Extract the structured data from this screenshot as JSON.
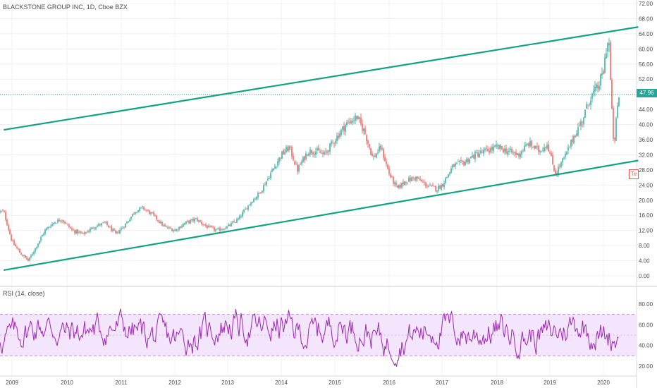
{
  "header": {
    "symbol_title": "BLACKSTONE GROUP INC, 1D, Cboe BZX"
  },
  "rsi_panel": {
    "label": "RSI (14, close)"
  },
  "price_tag": {
    "value": "47.96"
  },
  "partial_tag": {
    "text": "Te"
  },
  "colors": {
    "up_candle": "#26a69a",
    "down_candle": "#ef5350",
    "trendline": "#10a37f",
    "rsi_line": "#9c27b0",
    "rsi_band_fill": "#f3e5fc",
    "price_line": "#26a69a",
    "axis_text": "#4a4a4a"
  },
  "chart_data": [
    {
      "type": "candlestick",
      "title": "BLACKSTONE GROUP INC, 1D, Cboe BZX",
      "x_tick_labels": [
        "2009",
        "2010",
        "2011",
        "2012",
        "2013",
        "2014",
        "2015",
        "2016",
        "2017",
        "2018",
        "2019",
        "2020"
      ],
      "y_tick_labels": [
        "0.00",
        "4.00",
        "8.00",
        "12.00",
        "16.00",
        "20.00",
        "24.00",
        "28.00",
        "32.00",
        "36.00",
        "40.00",
        "44.00",
        "48.00",
        "52.00",
        "56.00",
        "60.00",
        "64.00",
        "68.00",
        "72.00"
      ],
      "ylim": [
        -2,
        73
      ],
      "last_price": 47.96,
      "series": [
        {
          "kind": "close",
          "x": [
            2008.85,
            2009.0,
            2009.15,
            2009.3,
            2009.45,
            2009.6,
            2009.75,
            2009.9,
            2010.1,
            2010.3,
            2010.5,
            2010.7,
            2010.9,
            2011.1,
            2011.25,
            2011.4,
            2011.6,
            2011.8,
            2012.0,
            2012.2,
            2012.4,
            2012.6,
            2012.8,
            2013.0,
            2013.2,
            2013.4,
            2013.6,
            2013.8,
            2014.0,
            2014.15,
            2014.3,
            2014.5,
            2014.65,
            2014.8,
            2015.0,
            2015.2,
            2015.4,
            2015.55,
            2015.7,
            2015.85,
            2016.0,
            2016.15,
            2016.3,
            2016.5,
            2016.7,
            2016.9,
            2017.0,
            2017.2,
            2017.4,
            2017.6,
            2017.8,
            2018.0,
            2018.2,
            2018.4,
            2018.6,
            2018.8,
            2018.95,
            2019.1,
            2019.3,
            2019.45,
            2019.6,
            2019.75,
            2019.9,
            2020.0,
            2020.05,
            2020.1,
            2020.15,
            2020.2,
            2020.25,
            2020.3
          ],
          "values": [
            17,
            9,
            6,
            4,
            8,
            12,
            14,
            15,
            12,
            11,
            13,
            14,
            11,
            14,
            17,
            18,
            16,
            13,
            12,
            14,
            15,
            13,
            12,
            13,
            15,
            19,
            22,
            27,
            32,
            34,
            28,
            33,
            33,
            32,
            36,
            40,
            42,
            38,
            31,
            34,
            27,
            23,
            25,
            26,
            24,
            23,
            24,
            29,
            30,
            32,
            33,
            34,
            33,
            32,
            35,
            33,
            35,
            27,
            32,
            37,
            41,
            47,
            50,
            54,
            60,
            63,
            45,
            33,
            44,
            47.96
          ]
        }
      ],
      "trendlines": [
        {
          "name": "upper",
          "points": [
            [
              2008.85,
              38.6
            ],
            [
              2020.65,
              65.8
            ]
          ]
        },
        {
          "name": "lower",
          "points": [
            [
              2008.85,
              1.5
            ],
            [
              2020.65,
              30.5
            ]
          ]
        }
      ]
    },
    {
      "type": "line",
      "title": "RSI (14, close)",
      "y_tick_labels": [
        "20.00",
        "40.00",
        "60.00",
        "80.00"
      ],
      "ylim": [
        15,
        92
      ],
      "band": [
        30,
        70
      ],
      "series": [
        {
          "name": "RSI (14, close)",
          "x": [
            2009.0,
            2009.5,
            2010.0,
            2010.5,
            2011.0,
            2011.5,
            2012.0,
            2012.5,
            2013.0,
            2013.5,
            2014.0,
            2014.5,
            2015.0,
            2015.5,
            2016.0,
            2016.5,
            2017.0,
            2017.5,
            2018.0,
            2018.5,
            2019.0,
            2019.5,
            2020.0,
            2020.3
          ],
          "values": [
            48,
            60,
            52,
            55,
            58,
            50,
            45,
            50,
            62,
            55,
            58,
            50,
            60,
            55,
            42,
            52,
            58,
            50,
            55,
            48,
            50,
            62,
            48,
            50
          ]
        }
      ]
    }
  ]
}
